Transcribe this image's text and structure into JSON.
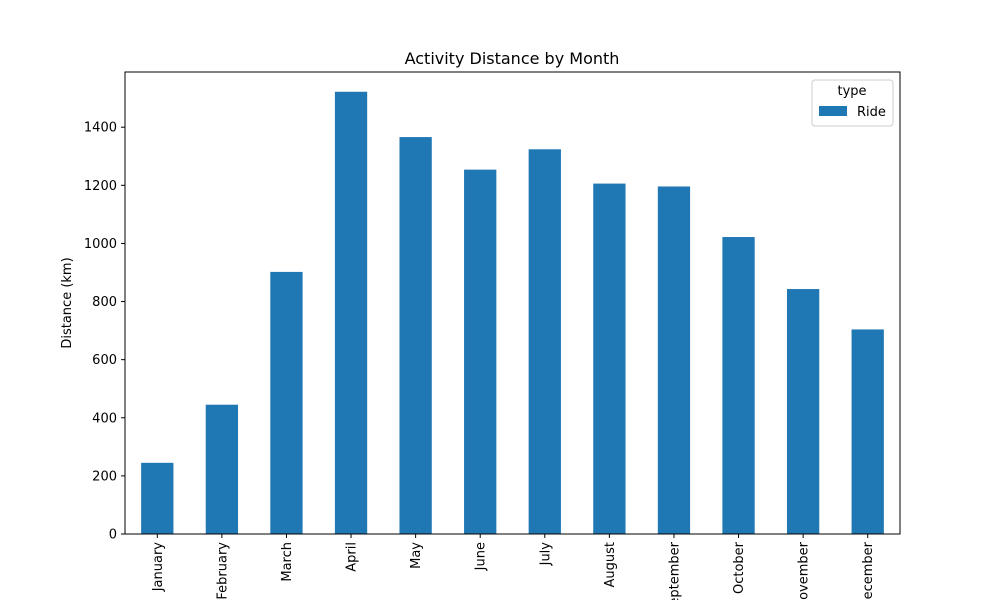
{
  "chart_data": {
    "type": "bar",
    "title": "Activity Distance by Month",
    "xlabel": "",
    "ylabel": "Distance (km)",
    "categories": [
      "January",
      "February",
      "March",
      "April",
      "May",
      "June",
      "July",
      "August",
      "September",
      "October",
      "November",
      "December"
    ],
    "series": [
      {
        "name": "Ride",
        "color": "#1f77b4",
        "values": [
          245,
          445,
          902,
          1522,
          1366,
          1254,
          1324,
          1206,
          1196,
          1022,
          843,
          704
        ]
      }
    ],
    "ylim": [
      0,
      1590
    ],
    "yticks": [
      0,
      200,
      400,
      600,
      800,
      1000,
      1200,
      1400
    ],
    "legend": {
      "title": "type",
      "placement": "top-right"
    },
    "grid": false
  }
}
